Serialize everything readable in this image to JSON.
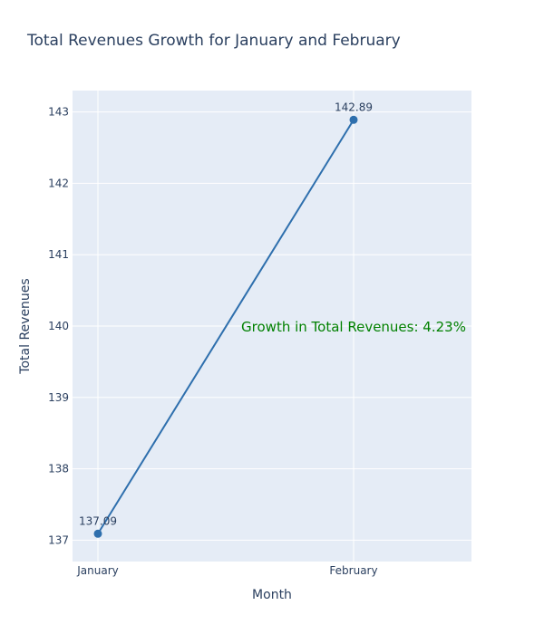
{
  "chart_data": {
    "type": "line",
    "title": "Total Revenues Growth for January and February",
    "xlabel": "Month",
    "ylabel": "Total Revenues",
    "categories": [
      "January",
      "February"
    ],
    "series": [
      {
        "values": [
          137.09,
          142.89
        ],
        "data_labels": [
          "137.09",
          "142.89"
        ]
      }
    ],
    "ylim": [
      136.7,
      143.3
    ],
    "yticks": [
      137,
      138,
      139,
      140,
      141,
      142,
      143
    ],
    "grid": true,
    "annotation": {
      "text": "Growth in Total Revenues: 4.23%",
      "x": "February",
      "y": 140,
      "color": "#008000"
    },
    "colors": {
      "line": "#2e6fad",
      "plot_bg": "#e5ecf6",
      "grid": "#ffffff",
      "text": "#2a3f5f"
    }
  }
}
